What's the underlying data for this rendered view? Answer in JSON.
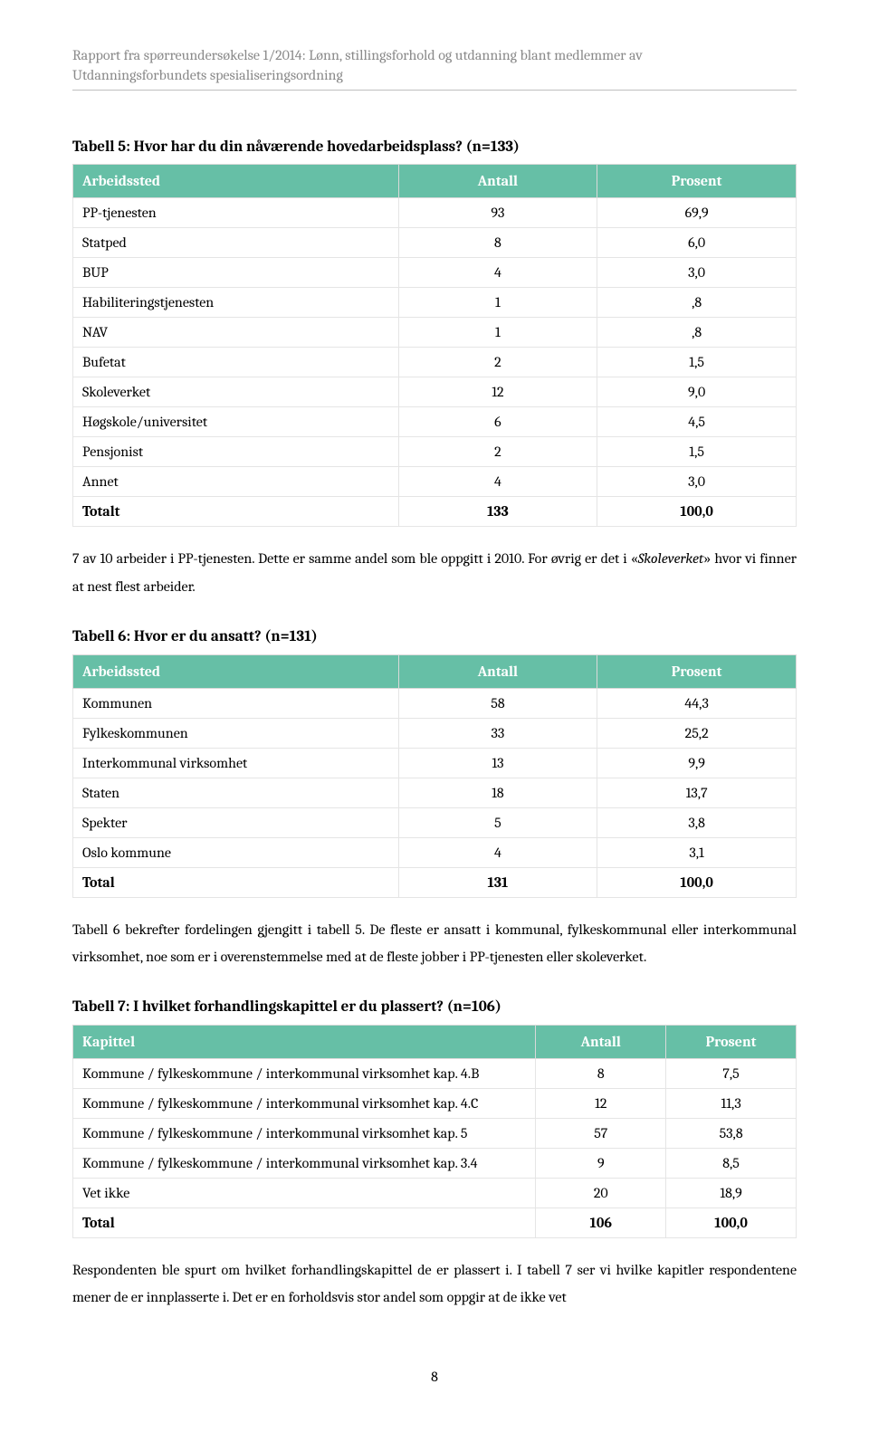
{
  "header": {
    "line1": "Rapport fra spørreundersøkelse 1/2014: Lønn, stillingsforhold og utdanning blant medlemmer av",
    "line2": "Utdanningsforbundets spesialiseringsordning"
  },
  "table5": {
    "title": "Tabell 5: Hvor har du din nåværende hovedarbeidsplass? (n=133)",
    "columns": [
      "Arbeidssted",
      "Antall",
      "Prosent"
    ],
    "rows": [
      [
        "PP-tjenesten",
        "93",
        "69,9"
      ],
      [
        "Statped",
        "8",
        "6,0"
      ],
      [
        "BUP",
        "4",
        "3,0"
      ],
      [
        "Habiliteringstjenesten",
        "1",
        ",8"
      ],
      [
        "NAV",
        "1",
        ",8"
      ],
      [
        "Bufetat",
        "2",
        "1,5"
      ],
      [
        "Skoleverket",
        "12",
        "9,0"
      ],
      [
        "Høgskole/universitet",
        "6",
        "4,5"
      ],
      [
        "Pensjonist",
        "2",
        "1,5"
      ],
      [
        "Annet",
        "4",
        "3,0"
      ]
    ],
    "total": [
      "Totalt",
      "133",
      "100,0"
    ],
    "header_bg": "#66bfa6"
  },
  "para1": {
    "pre": "7 av 10 arbeider i PP-tjenesten. Dette er samme andel som ble oppgitt i 2010. For øvrig er det i «",
    "em": "Skoleverket",
    "post": "» hvor vi finner at nest flest arbeider."
  },
  "table6": {
    "title": "Tabell 6: Hvor er du ansatt? (n=131)",
    "columns": [
      "Arbeidssted",
      "Antall",
      "Prosent"
    ],
    "rows": [
      [
        "Kommunen",
        "58",
        "44,3"
      ],
      [
        "Fylkeskommunen",
        "33",
        "25,2"
      ],
      [
        "Interkommunal virksomhet",
        "13",
        "9,9"
      ],
      [
        "Staten",
        "18",
        "13,7"
      ],
      [
        "Spekter",
        "5",
        "3,8"
      ],
      [
        "Oslo kommune",
        "4",
        "3,1"
      ]
    ],
    "total": [
      "Total",
      "131",
      "100,0"
    ],
    "header_bg": "#66bfa6"
  },
  "para2": "Tabell 6 bekrefter fordelingen gjengitt i tabell 5. De fleste er ansatt i kommunal, fylkeskommunal eller interkommunal virksomhet, noe som er i overenstemmelse med at de fleste jobber i PP-tjenesten eller skoleverket.",
  "table7": {
    "title": "Tabell 7: I hvilket forhandlingskapittel er du plassert? (n=106)",
    "columns": [
      "Kapittel",
      "Antall",
      "Prosent"
    ],
    "rows": [
      [
        "Kommune / fylkeskommune / interkommunal virksomhet kap. 4.B",
        "8",
        "7,5"
      ],
      [
        "Kommune / fylkeskommune / interkommunal virksomhet kap. 4.C",
        "12",
        "11,3"
      ],
      [
        "Kommune / fylkeskommune / interkommunal virksomhet kap. 5",
        "57",
        "53,8"
      ],
      [
        "Kommune / fylkeskommune / interkommunal virksomhet kap. 3.4",
        "9",
        "8,5"
      ],
      [
        "Vet ikke",
        "20",
        "18,9"
      ]
    ],
    "total": [
      "Total",
      "106",
      "100,0"
    ],
    "header_bg": "#66bfa6"
  },
  "para3": "Respondenten ble spurt om hvilket forhandlingskapittel de er plassert i. I tabell 7 ser vi hvilke kapitler respondentene mener de er innplasserte i. Det er en forholdsvis stor andel som oppgir at de ikke vet",
  "page_number": "8"
}
